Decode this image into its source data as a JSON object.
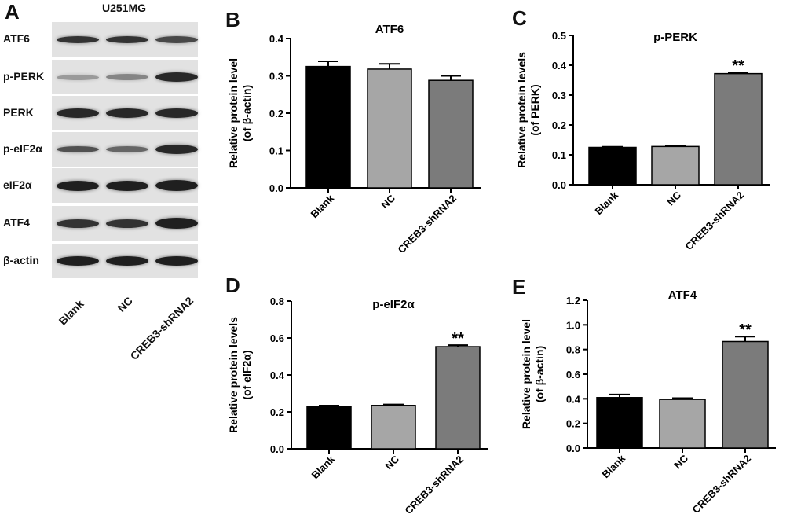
{
  "panel_letters": [
    "A",
    "B",
    "C",
    "D",
    "E"
  ],
  "western_blot": {
    "cell_line": "U251MG",
    "proteins": [
      "ATF6",
      "p-PERK",
      "PERK",
      "p-eIF2α",
      "eIF2α",
      "ATF4",
      "β-actin"
    ],
    "lanes": [
      "Blank",
      "NC",
      "CREB3-shRNA2"
    ]
  },
  "chart_data": [
    {
      "id": "B",
      "type": "bar",
      "title": "ATF6",
      "ylabel_line1": "Relative protein level",
      "ylabel_line2": "(of β-actin)",
      "categories": [
        "Blank",
        "NC",
        "CREB3-shRNA2"
      ],
      "values": [
        0.325,
        0.318,
        0.288
      ],
      "errors": [
        0.014,
        0.014,
        0.012
      ],
      "colors": [
        "#000000",
        "#a6a6a6",
        "#7b7b7b"
      ],
      "significance": [
        "",
        "",
        ""
      ],
      "ylim": [
        0,
        0.4
      ],
      "yticks": [
        "0.0",
        "0.1",
        "0.2",
        "0.3",
        "0.4"
      ]
    },
    {
      "id": "C",
      "type": "bar",
      "title": "p-PERK",
      "ylabel_line1": "Relative protein levels",
      "ylabel_line2": "(of PERK)",
      "categories": [
        "Blank",
        "NC",
        "CREB3-shRNA2"
      ],
      "values": [
        0.125,
        0.128,
        0.372
      ],
      "errors": [
        0.002,
        0.003,
        0.004
      ],
      "colors": [
        "#000000",
        "#a6a6a6",
        "#7b7b7b"
      ],
      "significance": [
        "",
        "",
        "**"
      ],
      "ylim": [
        0,
        0.5
      ],
      "yticks": [
        "0.0",
        "0.1",
        "0.2",
        "0.3",
        "0.4",
        "0.5"
      ]
    },
    {
      "id": "D",
      "type": "bar",
      "title": "p-eIF2α",
      "ylabel_line1": "Relative protein levels",
      "ylabel_line2": "(of eIF2α)",
      "categories": [
        "Blank",
        "NC",
        "CREB3-shRNA2"
      ],
      "values": [
        0.228,
        0.235,
        0.553
      ],
      "errors": [
        0.006,
        0.005,
        0.008
      ],
      "colors": [
        "#000000",
        "#a6a6a6",
        "#7b7b7b"
      ],
      "significance": [
        "",
        "",
        "**"
      ],
      "ylim": [
        0,
        0.8
      ],
      "yticks": [
        "0.0",
        "0.2",
        "0.4",
        "0.6",
        "0.8"
      ]
    },
    {
      "id": "E",
      "type": "bar",
      "title": "ATF4",
      "ylabel_line1": "Relative protein level",
      "ylabel_line2": "(of β-actin)",
      "categories": [
        "Blank",
        "NC",
        "CREB3-shRNA2"
      ],
      "values": [
        0.41,
        0.395,
        0.865
      ],
      "errors": [
        0.025,
        0.01,
        0.04
      ],
      "colors": [
        "#000000",
        "#a6a6a6",
        "#7b7b7b"
      ],
      "significance": [
        "",
        "",
        "**"
      ],
      "ylim": [
        0,
        1.2
      ],
      "yticks": [
        "0.0",
        "0.2",
        "0.4",
        "0.6",
        "0.8",
        "1.0",
        "1.2"
      ]
    }
  ]
}
